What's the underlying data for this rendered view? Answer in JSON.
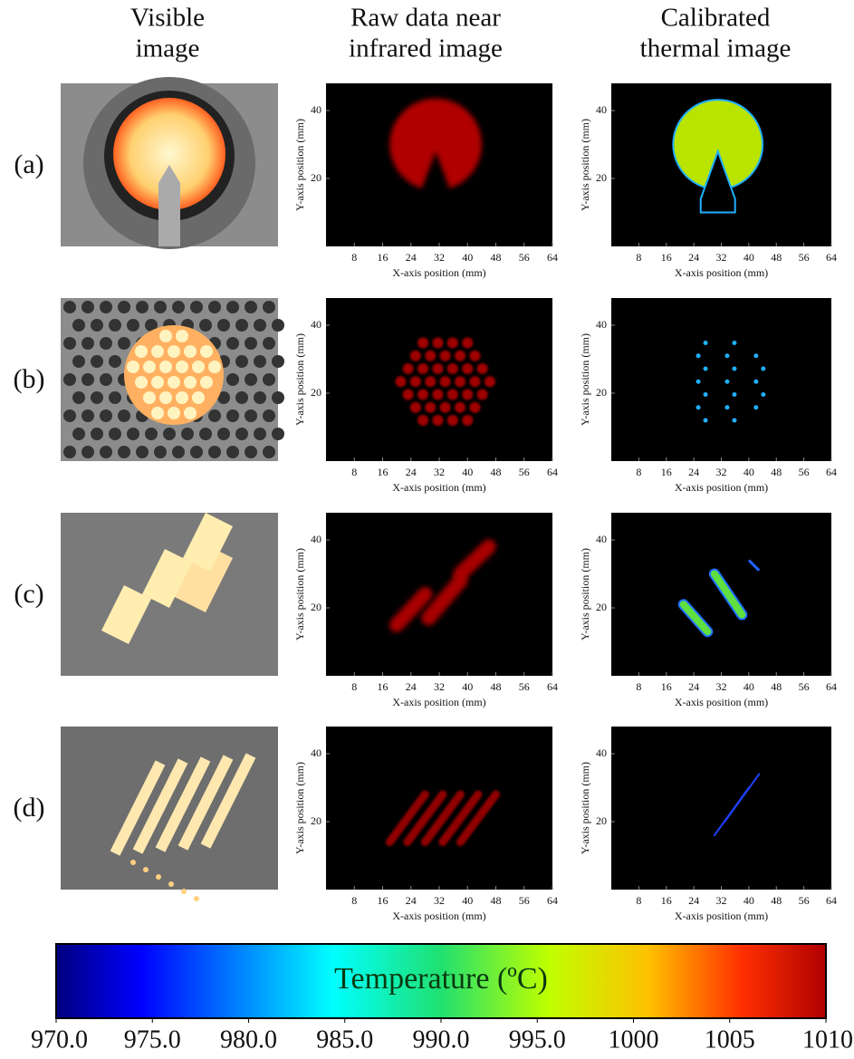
{
  "columns": [
    [
      "Visible",
      "image"
    ],
    [
      "Raw data near",
      "infrared image"
    ],
    [
      "Calibrated",
      "thermal image"
    ]
  ],
  "rows": [
    "(a)",
    "(b)",
    "(c)",
    "(d)"
  ],
  "plot_axes": {
    "x_label": "X-axis position (mm)",
    "y_label": "Y-axis position (mm)",
    "xlim": [
      0,
      64
    ],
    "xticks": [
      8,
      16,
      24,
      32,
      40,
      48,
      56,
      64
    ],
    "ylim": [
      0,
      48
    ],
    "yticks": [
      20,
      40
    ]
  },
  "colorbar": {
    "label": "Temperature (ºC)",
    "lim": [
      970,
      1010
    ],
    "ticks": [
      {
        "value": 970,
        "label": "970.0"
      },
      {
        "value": 975,
        "label": "975.0"
      },
      {
        "value": 980,
        "label": "980.0"
      },
      {
        "value": 985,
        "label": "985.0"
      },
      {
        "value": 990,
        "label": "990.0"
      },
      {
        "value": 995,
        "label": "995.0"
      },
      1000,
      1005,
      1010
    ]
  }
}
